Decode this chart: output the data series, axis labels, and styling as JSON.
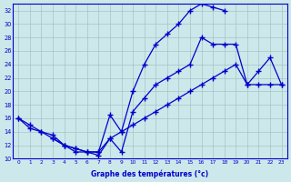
{
  "xlabel": "Graphe des températures (°c)",
  "background_color": "#cce8ea",
  "line_color": "#0000cc",
  "xlim": [
    -0.5,
    23.5
  ],
  "ylim": [
    10,
    33
  ],
  "xticks": [
    0,
    1,
    2,
    3,
    4,
    5,
    6,
    7,
    8,
    9,
    10,
    11,
    12,
    13,
    14,
    15,
    16,
    17,
    18,
    19,
    20,
    21,
    22,
    23
  ],
  "yticks": [
    10,
    12,
    14,
    16,
    18,
    20,
    22,
    24,
    26,
    28,
    30,
    32
  ],
  "series1_x": [
    0,
    1,
    2,
    3,
    4,
    5,
    6,
    7,
    8,
    9,
    10,
    11,
    12,
    13,
    14,
    15,
    16,
    17,
    18
  ],
  "series1_y": [
    16,
    15,
    14,
    13.5,
    12,
    11,
    11,
    11,
    16.5,
    14,
    20,
    24,
    27,
    28.5,
    30,
    32,
    33,
    32.5,
    32
  ],
  "series2_x": [
    0,
    1,
    2,
    3,
    4,
    5,
    6,
    7,
    8,
    9,
    10,
    11,
    12,
    13,
    14,
    15,
    16,
    17,
    18,
    19,
    20,
    21,
    22,
    23
  ],
  "series2_y": [
    16,
    14.5,
    14,
    13,
    12,
    11.5,
    11,
    11,
    13,
    14,
    15,
    16,
    17,
    18,
    19,
    20,
    21,
    22,
    23,
    24,
    21,
    21,
    21,
    21
  ],
  "series3_x": [
    3,
    4,
    5,
    6,
    7,
    8,
    9,
    10,
    11,
    12,
    13,
    14,
    15,
    16,
    17,
    18,
    19,
    20,
    21,
    22,
    23
  ],
  "series3_y": [
    13,
    12,
    11.5,
    11,
    10.5,
    13,
    11,
    17,
    19,
    21,
    22,
    23,
    24,
    28,
    27,
    27,
    27,
    21,
    23,
    25,
    21
  ]
}
